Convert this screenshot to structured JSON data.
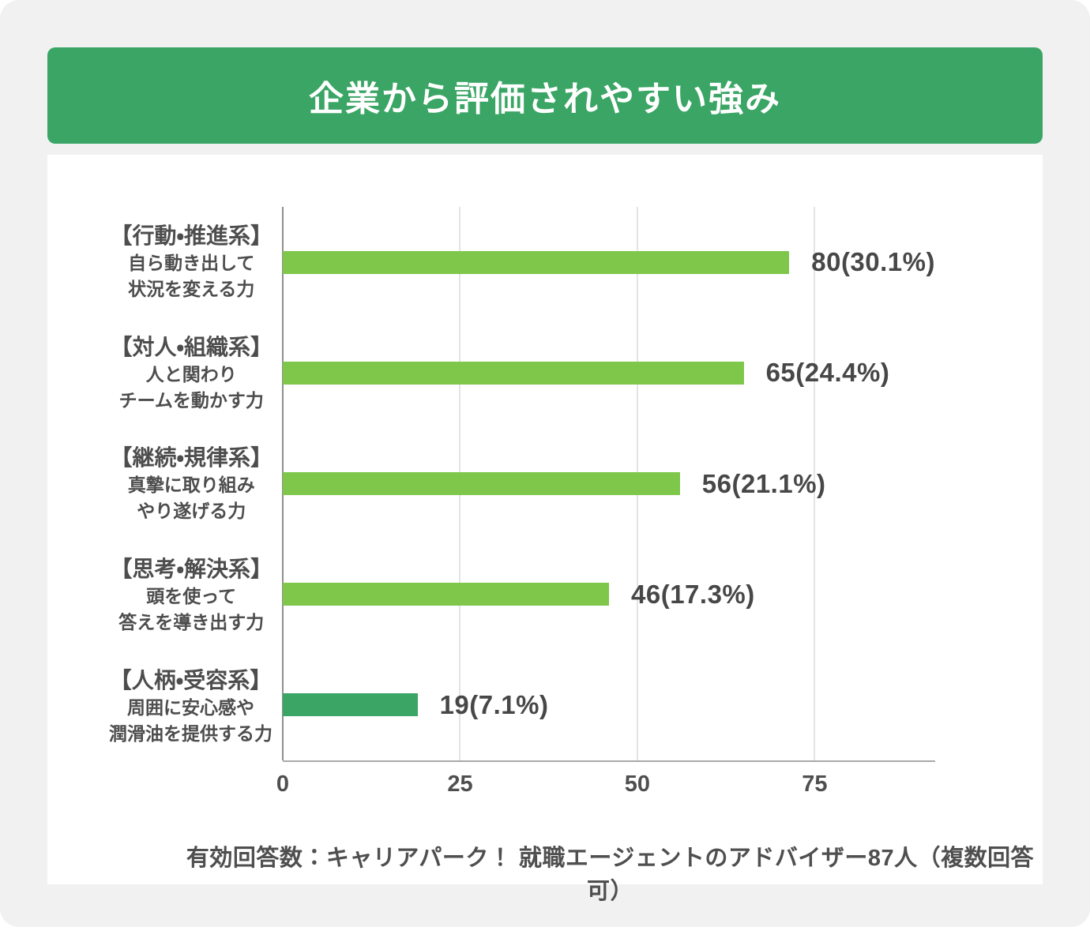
{
  "header": {
    "title": "企業から評価されやすい強み"
  },
  "footnote": "有効回答数：キャリアパーク！ 就職エージェントのアドバイザー87人（複数回答可）",
  "colors": {
    "banner_green": "#3aa564",
    "bar_light_green": "#7ec74b",
    "bar_dark_green": "#3aa564",
    "page_background": "#f1f1f2",
    "card_background": "#ffffff",
    "grid_line": "#e4e4e4",
    "zero_axis_line": "#8f8f8f",
    "bottom_axis_line": "#a9a9a9",
    "text": "#4f4f4f"
  },
  "chart_data": {
    "type": "bar",
    "orientation": "horizontal",
    "title": "企業から評価されやすい強み",
    "xlabel": "",
    "ylabel": "",
    "xlim": [
      0,
      92
    ],
    "x_ticks": [
      0,
      25,
      50,
      75
    ],
    "grid": true,
    "legend": false,
    "items": [
      {
        "category_title": "【行動・推進系】",
        "category_sub": [
          "自ら動き出して",
          "状況を変える力"
        ],
        "value": 80,
        "percent": 30.1,
        "value_label": "80(30.1%)",
        "color": "#7ec74b"
      },
      {
        "category_title": "【対人・組織系】",
        "category_sub": [
          "人と関わり",
          "チームを動かす力"
        ],
        "value": 65,
        "percent": 24.4,
        "value_label": "65(24.4%)",
        "color": "#7ec74b"
      },
      {
        "category_title": "【継続・規律系】",
        "category_sub": [
          "真摯に取り組み",
          "やり遂げる力"
        ],
        "value": 56,
        "percent": 21.1,
        "value_label": "56(21.1%)",
        "color": "#7ec74b"
      },
      {
        "category_title": "【思考・解決系】",
        "category_sub": [
          "頭を使って",
          "答えを導き出す力"
        ],
        "value": 46,
        "percent": 17.3,
        "value_label": "46(17.3%)",
        "color": "#7ec74b"
      },
      {
        "category_title": "【人柄・受容系】",
        "category_sub": [
          "周囲に安心感や",
          "潤滑油を提供する力"
        ],
        "value": 19,
        "percent": 7.1,
        "value_label": "19(7.1%)",
        "color": "#3aa564"
      }
    ]
  }
}
